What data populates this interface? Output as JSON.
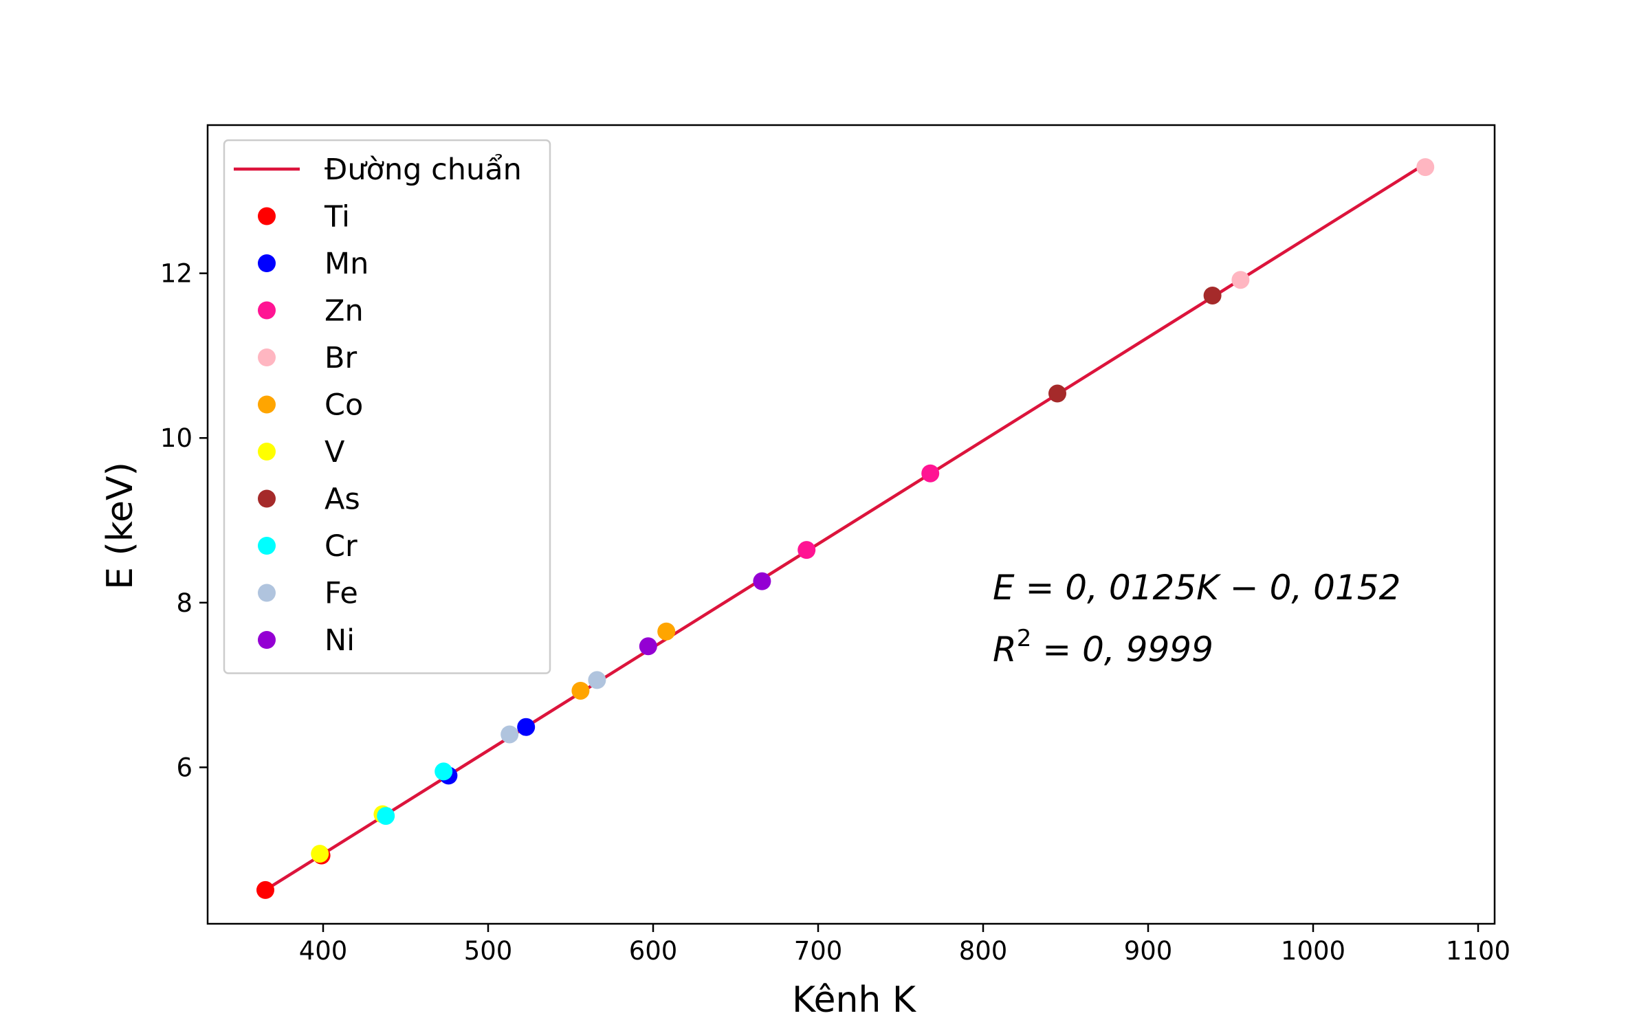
{
  "chart_data": {
    "type": "scatter",
    "title": "",
    "xlabel": "Kênh K",
    "ylabel": "E (keV)",
    "xlim": [
      330,
      1110
    ],
    "ylim": [
      4.1,
      13.8
    ],
    "xticks": [
      400,
      500,
      600,
      700,
      800,
      900,
      1000,
      1100
    ],
    "yticks": [
      6,
      8,
      10,
      12
    ],
    "grid": false,
    "legend_position": "upper-left",
    "fit_line": {
      "name": "Đường chuẩn",
      "color": "#dc143c",
      "x": [
        365,
        1068
      ],
      "y": [
        4.51,
        13.33
      ]
    },
    "series": [
      {
        "name": "Ti",
        "color": "#ff0000",
        "points": [
          [
            365,
            4.51
          ],
          [
            399,
            4.93
          ]
        ]
      },
      {
        "name": "Mn",
        "color": "#0000ff",
        "points": [
          [
            476,
            5.9
          ],
          [
            523,
            6.49
          ]
        ]
      },
      {
        "name": "Zn",
        "color": "#ff1493",
        "points": [
          [
            693,
            8.64
          ],
          [
            768,
            9.57
          ]
        ]
      },
      {
        "name": "Br",
        "color": "#ffb6c1",
        "points": [
          [
            956,
            11.92
          ],
          [
            1068,
            13.29
          ]
        ]
      },
      {
        "name": "Co",
        "color": "#ffa500",
        "points": [
          [
            556,
            6.93
          ],
          [
            608,
            7.65
          ]
        ]
      },
      {
        "name": "V",
        "color": "#ffff00",
        "points": [
          [
            398,
            4.95
          ],
          [
            436,
            5.43
          ]
        ]
      },
      {
        "name": "As",
        "color": "#a52a2a",
        "points": [
          [
            845,
            10.54
          ],
          [
            939,
            11.73
          ]
        ]
      },
      {
        "name": "Cr",
        "color": "#00ffff",
        "points": [
          [
            438,
            5.41
          ],
          [
            473,
            5.95
          ]
        ]
      },
      {
        "name": "Fe",
        "color": "#b0c4de",
        "points": [
          [
            513,
            6.4
          ],
          [
            566,
            7.06
          ]
        ]
      },
      {
        "name": "Ni",
        "color": "#9400d3",
        "points": [
          [
            597,
            7.47
          ],
          [
            666,
            8.26
          ]
        ]
      }
    ],
    "annotations": {
      "equation": "E = 0, 0125K − 0, 0152",
      "r2_prefix": "R",
      "r2_sup": "2",
      "r2_rest": " = 0, 9999"
    }
  }
}
